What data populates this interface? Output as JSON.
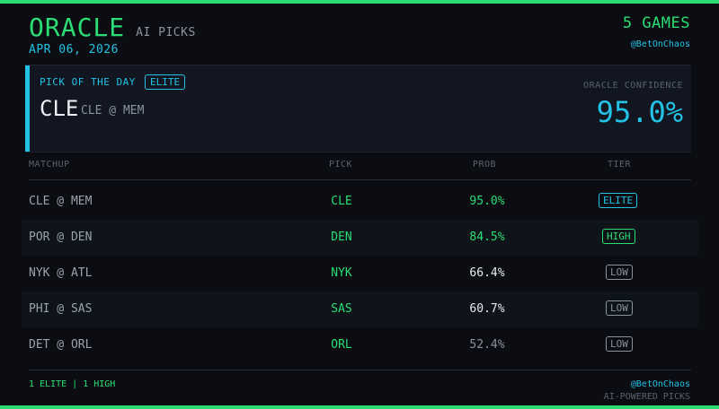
{
  "header": {
    "brand": "ORACLE",
    "subtitle": "AI PICKS",
    "date": "APR 06, 2026",
    "games": "5 GAMES",
    "handle": "@BetOnChaos"
  },
  "pick_of_day": {
    "label": "PICK OF THE DAY",
    "badge": "ELITE",
    "pick": "CLE",
    "matchup": "CLE @ MEM",
    "confidence_label": "ORACLE CONFIDENCE",
    "confidence": "95.0%"
  },
  "table": {
    "headers": {
      "matchup": "MATCHUP",
      "pick": "PICK",
      "prob": "PROB",
      "tier": "TIER"
    },
    "rows": [
      {
        "matchup": "CLE @ MEM",
        "pick": "CLE",
        "prob": "95.0%",
        "tier": "ELITE"
      },
      {
        "matchup": "POR @ DEN",
        "pick": "DEN",
        "prob": "84.5%",
        "tier": "HIGH"
      },
      {
        "matchup": "NYK @ ATL",
        "pick": "NYK",
        "prob": "66.4%",
        "tier": "LOW"
      },
      {
        "matchup": "PHI @ SAS",
        "pick": "SAS",
        "prob": "60.7%",
        "tier": "LOW"
      },
      {
        "matchup": "DET @ ORL",
        "pick": "ORL",
        "prob": "52.4%",
        "tier": "LOW"
      }
    ]
  },
  "footer": {
    "summary": "1 ELITE | 1 HIGH",
    "handle": "@BetOnChaos",
    "tagline": "AI-POWERED PICKS"
  },
  "colors": {
    "accent_green": "#2bde73",
    "accent_cyan": "#22c3e6",
    "tier_elite": "#22c3e6",
    "tier_high": "#2bde73",
    "tier_low": "#8b939e",
    "prob_elite": "#2bde73",
    "prob_high": "#2bde73",
    "prob_low": "#e6ebf0",
    "prob_faded": "#8b939e"
  }
}
